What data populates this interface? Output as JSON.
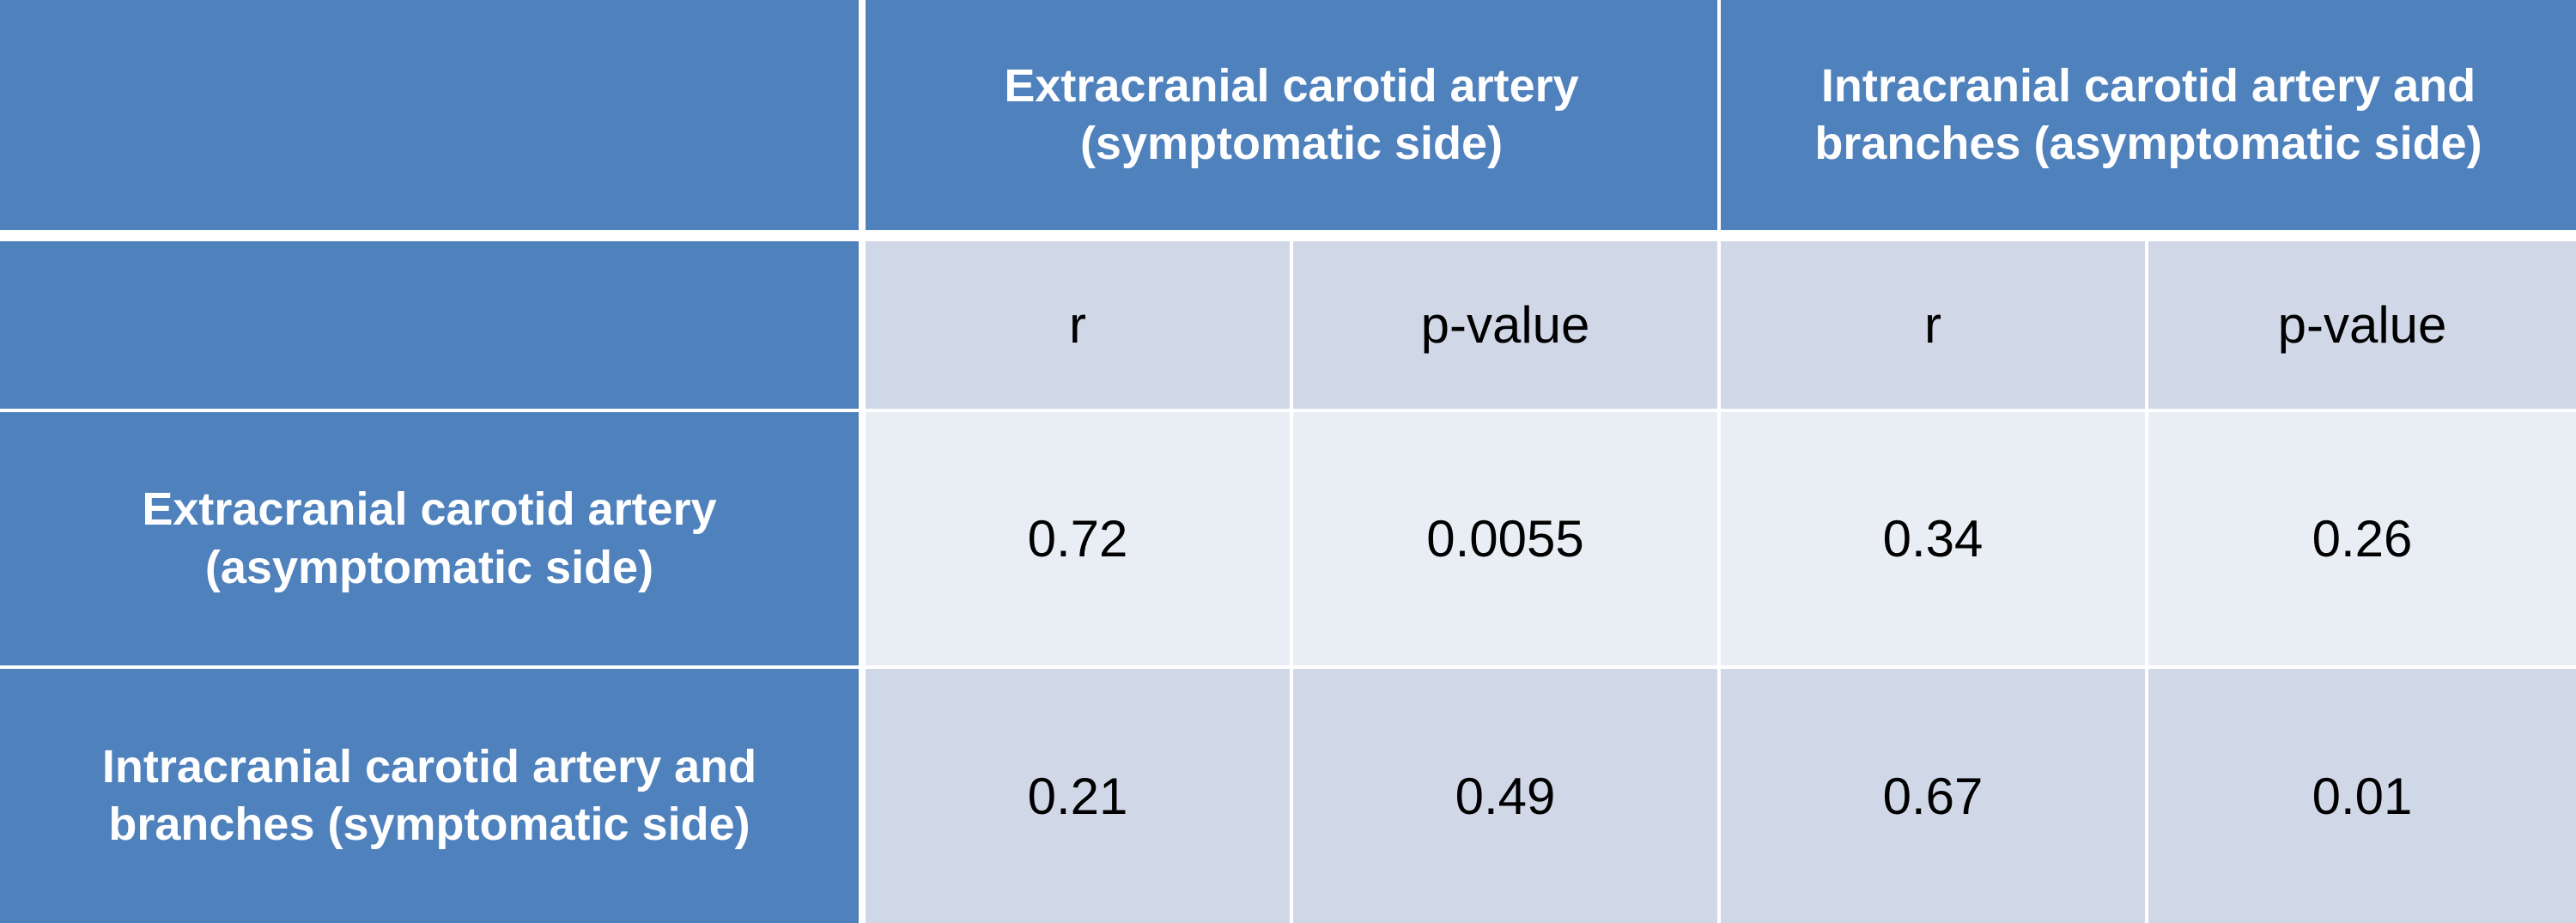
{
  "table": {
    "column_groups": [
      "Extracranial carotid artery (symptomatic side)",
      "Intracranial carotid artery and branches (asymptomatic side)"
    ],
    "subheaders": [
      "r",
      "p-value",
      "r",
      "p-value"
    ],
    "rows": [
      {
        "label": "Extracranial carotid artery (asymptomatic side)",
        "values": [
          "0.72",
          "0.0055",
          "0.34",
          "0.26"
        ]
      },
      {
        "label": "Intracranial carotid artery and branches (symptomatic side)",
        "values": [
          "0.21",
          "0.49",
          "0.67",
          "0.01"
        ]
      }
    ]
  }
}
